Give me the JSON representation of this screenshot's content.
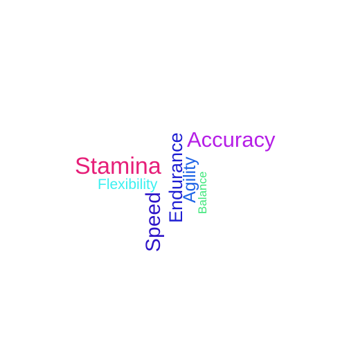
{
  "words": [
    {
      "key": "accuracy",
      "text": "Accuracy",
      "color": "#b51ee6"
    },
    {
      "key": "stamina",
      "text": "Stamina",
      "color": "#e61e78"
    },
    {
      "key": "flexibility",
      "text": "Flexibility",
      "color": "#3cf0f0"
    },
    {
      "key": "endurance",
      "text": "Endurance",
      "color": "#1e1ed2"
    },
    {
      "key": "agility",
      "text": "Agility",
      "color": "#1e64e6"
    },
    {
      "key": "balance",
      "text": "Balance",
      "color": "#3ce678"
    },
    {
      "key": "speed",
      "text": "Speed",
      "color": "#2d14c8"
    }
  ]
}
